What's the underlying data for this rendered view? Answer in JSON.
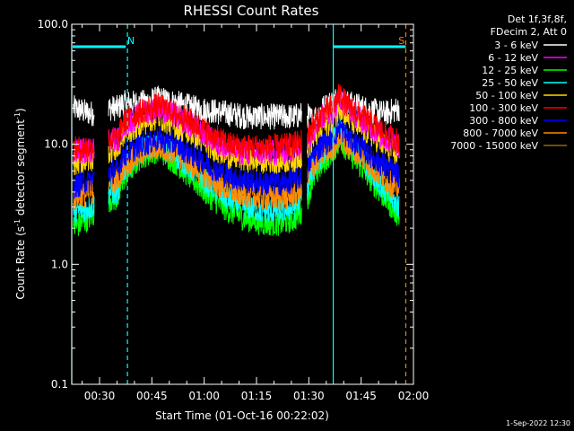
{
  "chart_data": {
    "type": "line",
    "title": "RHESSI Count Rates",
    "xlabel": "Start Time (01-Oct-16 00:22:02)",
    "ylabel_main": "Count Rate (s",
    "ylabel_sup1": "-1",
    "ylabel_mid": " detector segment",
    "ylabel_sup2": "-1",
    "ylabel_end": ")",
    "yscale": "log",
    "ylim": [
      0.1,
      100.0
    ],
    "xlim": [
      "00:22:02",
      "02:00:00"
    ],
    "x_start_min": 22.03,
    "x_end_min": 120,
    "x_ticks": [
      {
        "value": 30,
        "label": "00:30"
      },
      {
        "value": 45,
        "label": "00:45"
      },
      {
        "value": 60,
        "label": "01:00"
      },
      {
        "value": 75,
        "label": "01:15"
      },
      {
        "value": 90,
        "label": "01:30"
      },
      {
        "value": 105,
        "label": "01:45"
      },
      {
        "value": 120,
        "label": "02:00"
      }
    ],
    "y_ticks": [
      {
        "value": 0.1,
        "label": "0.1"
      },
      {
        "value": 1.0,
        "label": "1.0"
      },
      {
        "value": 10.0,
        "label": "10.0"
      },
      {
        "value": 100.0,
        "label": "100.0"
      }
    ],
    "legend_header": [
      "Det 1f,3f,8f,",
      "FDecim 2, Att 0"
    ],
    "series": [
      {
        "name": "3 - 6 keV",
        "color": "#ffffff",
        "profile": [
          [
            22.5,
            20
          ],
          [
            27.5,
            18
          ],
          [
            33,
            20
          ],
          [
            35.5,
            20
          ],
          [
            36.5,
            22
          ],
          [
            42,
            22
          ],
          [
            47,
            24
          ],
          [
            52,
            22
          ],
          [
            57,
            20
          ],
          [
            62,
            19
          ],
          [
            67,
            18
          ],
          [
            72,
            17
          ],
          [
            77,
            17
          ],
          [
            82,
            17
          ],
          [
            86,
            17
          ],
          [
            89,
            18
          ],
          [
            91,
            16
          ],
          [
            94,
            20
          ],
          [
            97,
            23
          ],
          [
            99,
            25
          ],
          [
            101,
            22
          ],
          [
            104,
            21
          ],
          [
            108,
            19
          ],
          [
            112,
            18
          ],
          [
            116,
            20
          ]
        ]
      },
      {
        "name": "6 - 12 keV",
        "color": "#ff00ff",
        "profile": [
          [
            22.5,
            8.5
          ],
          [
            27.5,
            9
          ],
          [
            33,
            11
          ],
          [
            35.5,
            11
          ],
          [
            36.5,
            14
          ],
          [
            42,
            18
          ],
          [
            47,
            20
          ],
          [
            52,
            17
          ],
          [
            57,
            14
          ],
          [
            62,
            11
          ],
          [
            67,
            9
          ],
          [
            72,
            8.5
          ],
          [
            77,
            8.5
          ],
          [
            82,
            8.5
          ],
          [
            86,
            9
          ],
          [
            89,
            10
          ],
          [
            91,
            13
          ],
          [
            94,
            17
          ],
          [
            97,
            19
          ],
          [
            99,
            25
          ],
          [
            101,
            20
          ],
          [
            104,
            17
          ],
          [
            108,
            14
          ],
          [
            112,
            11
          ],
          [
            116,
            10
          ]
        ]
      },
      {
        "name": "12 - 25 keV",
        "color": "#00ff00",
        "profile": [
          [
            22.5,
            2.0
          ],
          [
            27.5,
            2.5
          ],
          [
            33,
            3.5
          ],
          [
            35.5,
            3.5
          ],
          [
            36.5,
            5
          ],
          [
            42,
            8
          ],
          [
            47,
            9
          ],
          [
            52,
            7
          ],
          [
            57,
            5
          ],
          [
            62,
            3.6
          ],
          [
            67,
            2.8
          ],
          [
            72,
            2.4
          ],
          [
            77,
            2.2
          ],
          [
            82,
            2.2
          ],
          [
            86,
            2.4
          ],
          [
            89,
            3
          ],
          [
            91,
            5
          ],
          [
            94,
            7
          ],
          [
            97,
            9
          ],
          [
            99,
            11
          ],
          [
            101,
            9
          ],
          [
            104,
            7
          ],
          [
            108,
            5
          ],
          [
            112,
            3.5
          ],
          [
            116,
            2.5
          ]
        ]
      },
      {
        "name": "25 - 50 keV",
        "color": "#00ffff",
        "profile": [
          [
            22.5,
            2.7
          ],
          [
            27.5,
            3
          ],
          [
            33,
            4
          ],
          [
            35.5,
            4
          ],
          [
            36.5,
            6
          ],
          [
            42,
            9
          ],
          [
            47,
            10
          ],
          [
            52,
            8
          ],
          [
            57,
            6
          ],
          [
            62,
            4.5
          ],
          [
            67,
            3.5
          ],
          [
            72,
            3
          ],
          [
            77,
            2.8
          ],
          [
            82,
            2.8
          ],
          [
            86,
            3
          ],
          [
            89,
            3.8
          ],
          [
            91,
            6
          ],
          [
            94,
            8.5
          ],
          [
            97,
            10.5
          ],
          [
            99,
            13
          ],
          [
            101,
            10.5
          ],
          [
            104,
            8.5
          ],
          [
            108,
            6
          ],
          [
            112,
            4
          ],
          [
            116,
            3
          ]
        ]
      },
      {
        "name": "50 - 100 keV",
        "color": "#ffd700",
        "profile": [
          [
            22.5,
            7
          ],
          [
            27.5,
            7.5
          ],
          [
            33,
            9
          ],
          [
            35.5,
            9
          ],
          [
            36.5,
            12
          ],
          [
            42,
            15
          ],
          [
            47,
            17
          ],
          [
            52,
            14
          ],
          [
            57,
            12
          ],
          [
            62,
            9.5
          ],
          [
            67,
            8
          ],
          [
            72,
            7.5
          ],
          [
            77,
            7.3
          ],
          [
            82,
            7.3
          ],
          [
            86,
            7.5
          ],
          [
            89,
            8.5
          ],
          [
            91,
            11
          ],
          [
            94,
            14
          ],
          [
            97,
            16
          ],
          [
            99,
            21
          ],
          [
            101,
            17
          ],
          [
            104,
            14
          ],
          [
            108,
            12
          ],
          [
            112,
            9.5
          ],
          [
            116,
            8
          ]
        ]
      },
      {
        "name": "100 - 300 keV",
        "color": "#ff0000",
        "profile": [
          [
            22.5,
            9
          ],
          [
            27.5,
            9.5
          ],
          [
            33,
            11
          ],
          [
            35.5,
            11
          ],
          [
            36.5,
            15
          ],
          [
            42,
            19
          ],
          [
            47,
            21
          ],
          [
            52,
            18
          ],
          [
            57,
            15
          ],
          [
            62,
            12
          ],
          [
            67,
            10
          ],
          [
            72,
            9.5
          ],
          [
            77,
            9.5
          ],
          [
            82,
            9.5
          ],
          [
            86,
            10
          ],
          [
            89,
            11
          ],
          [
            91,
            14
          ],
          [
            94,
            18
          ],
          [
            97,
            21
          ],
          [
            99,
            26
          ],
          [
            101,
            21
          ],
          [
            104,
            18
          ],
          [
            108,
            15
          ],
          [
            112,
            12
          ],
          [
            116,
            10.5
          ]
        ]
      },
      {
        "name": "300 - 800 keV",
        "color": "#0000ff",
        "profile": [
          [
            22.5,
            4.5
          ],
          [
            27.5,
            5
          ],
          [
            33,
            6
          ],
          [
            35.5,
            6
          ],
          [
            36.5,
            8
          ],
          [
            42,
            10
          ],
          [
            47,
            11
          ],
          [
            52,
            10
          ],
          [
            57,
            8
          ],
          [
            62,
            6.5
          ],
          [
            67,
            5.5
          ],
          [
            72,
            5
          ],
          [
            77,
            4.8
          ],
          [
            82,
            4.8
          ],
          [
            86,
            5
          ],
          [
            89,
            5.8
          ],
          [
            91,
            8
          ],
          [
            94,
            10
          ],
          [
            97,
            11.5
          ],
          [
            99,
            14
          ],
          [
            101,
            11.5
          ],
          [
            104,
            10
          ],
          [
            108,
            8
          ],
          [
            112,
            6.5
          ],
          [
            116,
            5.5
          ]
        ]
      },
      {
        "name": "800 - 7000 keV",
        "color": "#ff8c00",
        "profile": [
          [
            22.5,
            3.5
          ],
          [
            27.5,
            4
          ],
          [
            33,
            5
          ],
          [
            35.5,
            5
          ],
          [
            36.5,
            6.5
          ],
          [
            42,
            8.5
          ],
          [
            47,
            9.5
          ],
          [
            52,
            8.5
          ],
          [
            57,
            6.5
          ],
          [
            62,
            5
          ],
          [
            67,
            4.2
          ],
          [
            72,
            3.8
          ],
          [
            77,
            3.6
          ],
          [
            82,
            3.6
          ],
          [
            86,
            3.8
          ],
          [
            89,
            4.5
          ],
          [
            91,
            6.5
          ],
          [
            94,
            8.5
          ],
          [
            97,
            9.5
          ],
          [
            99,
            11.5
          ],
          [
            101,
            9.5
          ],
          [
            104,
            8.5
          ],
          [
            108,
            6.5
          ],
          [
            112,
            5
          ],
          [
            116,
            4.2
          ]
        ]
      },
      {
        "name": "7000 - 15000 keV",
        "color": "#8b6914",
        "profile": []
      }
    ],
    "gaps": [
      [
        28.5,
        32.5
      ],
      [
        88.0,
        89.5
      ]
    ],
    "orbit_markers": [
      {
        "label": "N",
        "time": 38.0,
        "color": "#00ffff",
        "style": "dashed",
        "label_at": 39.0,
        "bar_from": 22.3,
        "bar_to": 37.5
      },
      {
        "label": "",
        "time": 97.0,
        "color": "#00ffff",
        "style": "solid",
        "label_at": null,
        "bar_from": 97.0,
        "bar_to": 117.8
      },
      {
        "label": "S",
        "time": 117.8,
        "color": "#ff7f00",
        "style": "dashed",
        "label_at": 116.6,
        "bar_from": null,
        "bar_to": null
      }
    ],
    "bar_level": 65,
    "grid": false,
    "legend_placement": "right"
  },
  "footer_stamp": "1-Sep-2022 12:30"
}
